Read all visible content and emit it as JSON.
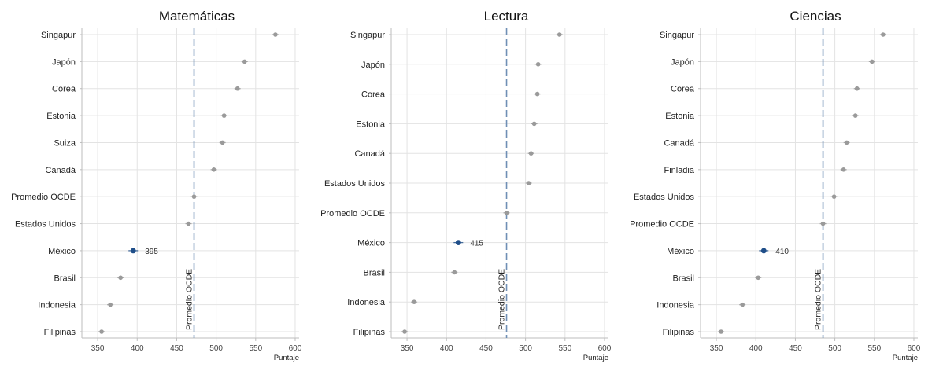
{
  "chart_data": [
    {
      "type": "scatter",
      "title": "Matemáticas",
      "xlabel": "Puntaje",
      "xlim": [
        330,
        605
      ],
      "xticks": [
        350,
        400,
        450,
        500,
        550,
        600
      ],
      "grid": true,
      "reference_line": {
        "value": 472,
        "label": "Promedio OCDE"
      },
      "highlight": {
        "category": "México",
        "label": "395"
      },
      "categories": [
        "Singapur",
        "Japón",
        "Corea",
        "Estonia",
        "Suiza",
        "Canadá",
        "Promedio OCDE",
        "Estados Unidos",
        "México",
        "Brasil",
        "Indonesia",
        "Filipinas"
      ],
      "values": [
        575,
        536,
        527,
        510,
        508,
        497,
        472,
        465,
        395,
        379,
        366,
        355
      ]
    },
    {
      "type": "scatter",
      "title": "Lectura",
      "xlabel": "Puntaje",
      "xlim": [
        330,
        605
      ],
      "xticks": [
        350,
        400,
        450,
        500,
        550,
        600
      ],
      "grid": true,
      "reference_line": {
        "value": 476,
        "label": "Promedio OCDE"
      },
      "highlight": {
        "category": "México",
        "label": "415"
      },
      "categories": [
        "Singapur",
        "Japón",
        "Corea",
        "Estonia",
        "Canadá",
        "Estados Unidos",
        "Promedio OCDE",
        "México",
        "Brasil",
        "Indonesia",
        "Filipinas"
      ],
      "values": [
        543,
        516,
        515,
        511,
        507,
        504,
        476,
        415,
        410,
        359,
        347
      ]
    },
    {
      "type": "scatter",
      "title": "Ciencias",
      "xlabel": "Puntaje",
      "xlim": [
        330,
        605
      ],
      "xticks": [
        350,
        400,
        450,
        500,
        550,
        600
      ],
      "grid": true,
      "reference_line": {
        "value": 485,
        "label": "Promedio OCDE"
      },
      "highlight": {
        "category": "México",
        "label": "410"
      },
      "categories": [
        "Singapur",
        "Japón",
        "Corea",
        "Estonia",
        "Canadá",
        "Finladia",
        "Estados Unidos",
        "Promedio OCDE",
        "México",
        "Brasil",
        "Indonesia",
        "Filipinas"
      ],
      "values": [
        561,
        547,
        528,
        526,
        515,
        511,
        499,
        485,
        410,
        403,
        383,
        356
      ]
    }
  ],
  "colors": {
    "point": "#9a9a9a",
    "highlight": "#1f4e89",
    "reference_line": "#6f8fb5",
    "grid": "#e3e3e3",
    "axis": "#bdbdbd"
  }
}
